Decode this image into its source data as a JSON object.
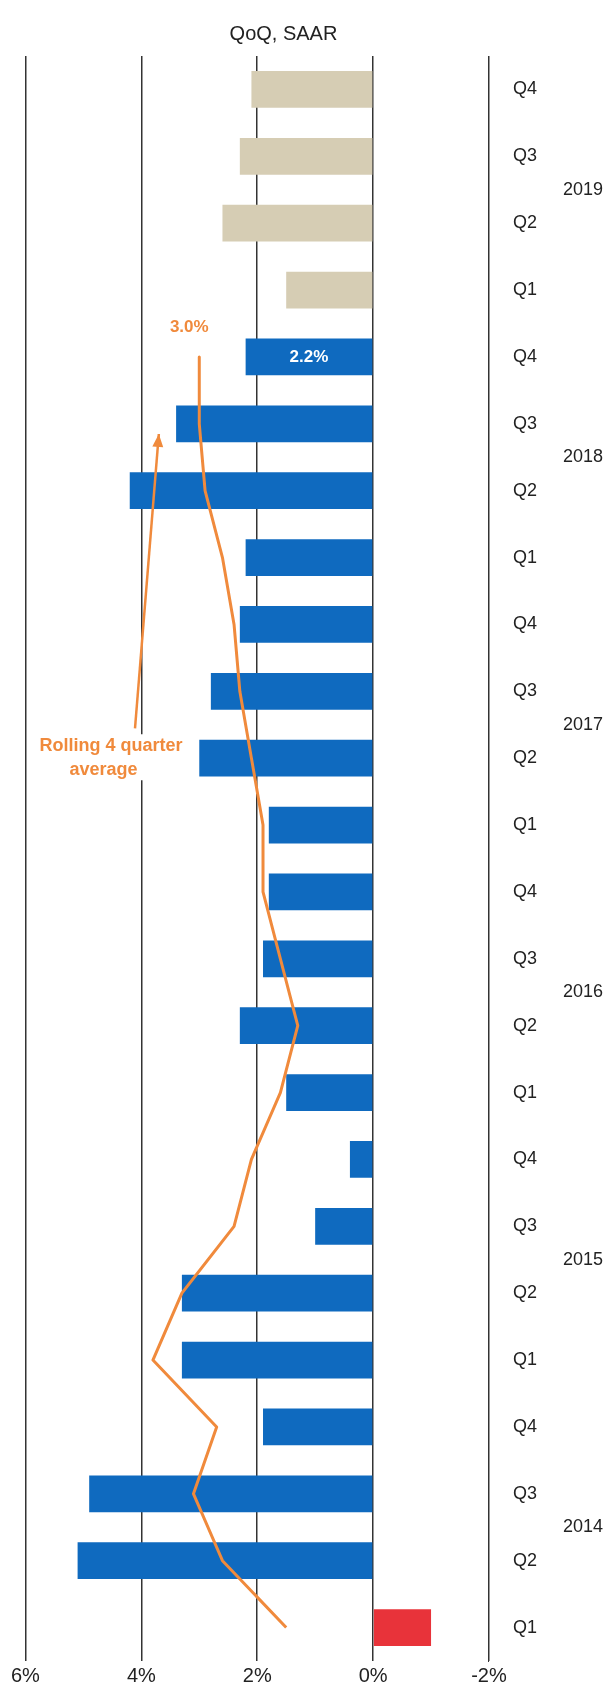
{
  "chart_data": {
    "type": "bar",
    "orientation": "horizontal",
    "title": "QoQ, SAAR",
    "categories": [
      "Q4",
      "Q3",
      "Q2",
      "Q1",
      "Q4",
      "Q3",
      "Q2",
      "Q1",
      "Q4",
      "Q3",
      "Q2",
      "Q1",
      "Q4",
      "Q3",
      "Q2",
      "Q1",
      "Q4",
      "Q3",
      "Q2",
      "Q1",
      "Q4",
      "Q3",
      "Q2",
      "Q1"
    ],
    "annotations": [
      "2019",
      "2018",
      "2017",
      "2016",
      "2015",
      "2014"
    ],
    "xlim": [
      6,
      -2
    ],
    "xticks": [
      {
        "value": 6,
        "label": "6%"
      },
      {
        "value": 4,
        "label": "4%"
      },
      {
        "value": 2,
        "label": "2%"
      },
      {
        "value": 0,
        "label": "0%"
      },
      {
        "value": -2,
        "label": "-2%"
      }
    ],
    "grid": "x",
    "legend": false,
    "marker": "none",
    "line_style": "solid",
    "series": [
      {
        "colors": [
          "#d6cdb4",
          "#d6cdb4",
          "#d6cdb4",
          "#d6cdb4",
          "#0f6abf",
          "#0f6abf",
          "#0f6abf",
          "#0f6abf",
          "#0f6abf",
          "#0f6abf",
          "#0f6abf",
          "#0f6abf",
          "#0f6abf",
          "#0f6abf",
          "#0f6abf",
          "#0f6abf",
          "#0f6abf",
          "#0f6abf",
          "#0f6abf",
          "#0f6abf",
          "#0f6abf",
          "#0f6abf",
          "#0f6abf",
          "#e8333a"
        ],
        "values": [
          2.1,
          2.3,
          2.6,
          1.5,
          2.2,
          3.4,
          4.2,
          2.2,
          2.3,
          2.8,
          3.0,
          1.8,
          1.8,
          1.9,
          2.3,
          1.5,
          0.4,
          1.0,
          3.3,
          3.3,
          1.9,
          4.9,
          5.1,
          -1.0
        ],
        "value_labels": [
          null,
          null,
          null,
          null,
          "2.2%",
          null,
          null,
          null,
          null,
          null,
          null,
          null,
          null,
          null,
          null,
          null,
          null,
          null,
          null,
          null,
          null,
          null,
          null,
          null
        ]
      },
      {
        "type": "line",
        "name": "Rolling 4 quarter average",
        "color": "#f08a3c",
        "values": [
          null,
          null,
          null,
          null,
          3.0,
          3.0,
          2.9,
          2.6,
          2.4,
          2.3,
          2.1,
          1.9,
          1.9,
          1.6,
          1.3,
          1.6,
          2.1,
          2.4,
          3.3,
          3.8,
          2.7,
          3.1,
          2.6,
          1.5
        ],
        "value_labels": [
          null,
          null,
          null,
          null,
          "3.0%",
          null,
          null,
          null,
          null,
          null,
          null,
          null,
          null,
          null,
          null,
          null,
          null,
          null,
          null,
          null,
          null,
          null,
          null,
          null
        ]
      }
    ]
  }
}
